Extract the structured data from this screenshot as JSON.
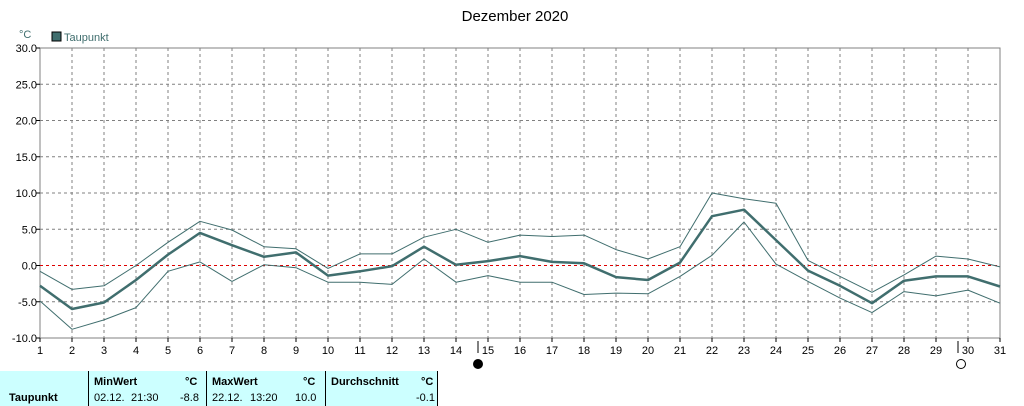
{
  "chart_data": {
    "type": "line",
    "title": "Dezember 2020",
    "ylabel": "°C",
    "ylim": [
      -10,
      30
    ],
    "yticks": [
      "30.0",
      "25.0",
      "20.0",
      "15.0",
      "10.0",
      "5.0",
      "0.0",
      "-5.0",
      "-10.0"
    ],
    "x": [
      1,
      2,
      3,
      4,
      5,
      6,
      7,
      8,
      9,
      10,
      11,
      12,
      13,
      14,
      15,
      16,
      17,
      18,
      19,
      20,
      21,
      22,
      23,
      24,
      25,
      26,
      27,
      28,
      29,
      30,
      31
    ],
    "grid": true,
    "legend": "top-left",
    "series": [
      {
        "name": "Taupunkt",
        "role": "mean",
        "color": "#406e6e",
        "values": [
          -2.8,
          -6.0,
          -5.1,
          -2.0,
          1.5,
          4.5,
          2.8,
          1.2,
          1.8,
          -1.4,
          -0.8,
          -0.1,
          2.6,
          0.1,
          0.6,
          1.3,
          0.5,
          0.3,
          -1.6,
          -2.0,
          0.4,
          6.8,
          7.7,
          3.5,
          -0.7,
          -2.8,
          -5.2,
          -2.1,
          -1.5,
          -1.5,
          -2.9
        ]
      },
      {
        "role": "max",
        "color": "#406e6e",
        "values": [
          -0.8,
          -3.3,
          -2.8,
          0.0,
          3.2,
          6.1,
          4.9,
          2.6,
          2.3,
          -0.4,
          1.6,
          1.6,
          3.9,
          5.0,
          3.2,
          4.2,
          4.0,
          4.2,
          2.2,
          0.9,
          2.6,
          10.0,
          9.2,
          8.6,
          0.7,
          -1.5,
          -3.7,
          -1.3,
          1.3,
          0.9,
          -0.2
        ]
      },
      {
        "role": "min",
        "color": "#406e6e",
        "values": [
          -4.9,
          -8.8,
          -7.5,
          -5.8,
          -0.8,
          0.5,
          -2.2,
          0.1,
          -0.3,
          -2.3,
          -2.3,
          -2.6,
          0.9,
          -2.3,
          -1.4,
          -2.3,
          -2.3,
          -4.0,
          -3.8,
          -3.9,
          -1.5,
          1.4,
          6.0,
          0.2,
          -2.2,
          -4.5,
          -6.5,
          -3.6,
          -4.2,
          -3.4,
          -5.2
        ]
      }
    ],
    "reference_line": {
      "y": 0,
      "color": "#dd0000"
    },
    "moon_phases": [
      {
        "day": 15,
        "phase": "new-moon"
      },
      {
        "day": 30,
        "phase": "full-moon"
      }
    ]
  },
  "legend": {
    "label": "Taupunkt",
    "color": "#406e6e"
  },
  "stats": {
    "row_label": "Taupunkt",
    "min": {
      "header": "MinWert",
      "unit": "°C",
      "date": "02.12.",
      "time": "21:30",
      "value": "-8.8"
    },
    "max": {
      "header": "MaxWert",
      "unit": "°C",
      "date": "22.12.",
      "time": "13:20",
      "value": "10.0"
    },
    "avg": {
      "header": "Durchschnitt",
      "unit": "°C",
      "value": "-0.1"
    }
  }
}
